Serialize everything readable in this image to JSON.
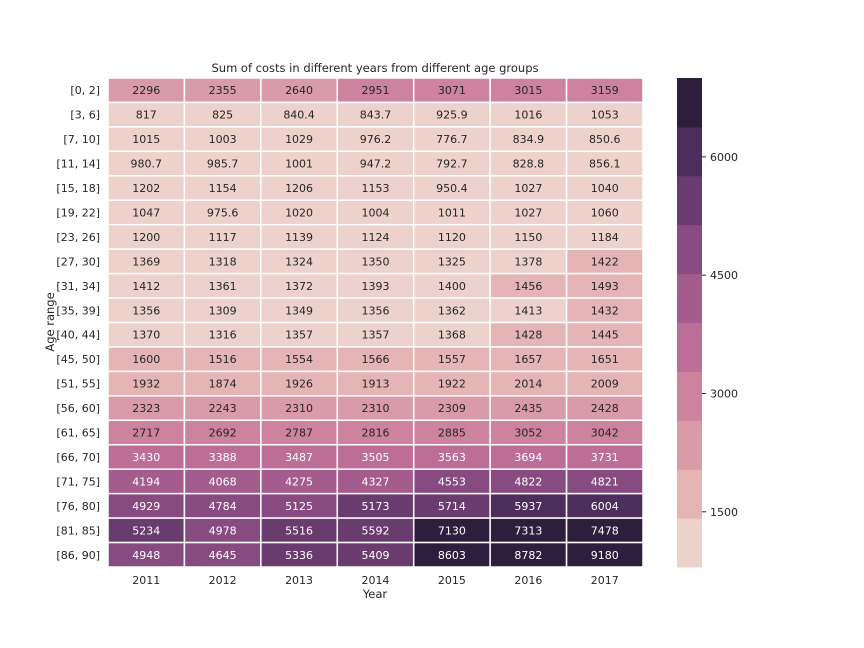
{
  "chart_data": {
    "type": "heatmap",
    "title": "Sum of costs in different years from different age groups",
    "xlabel": "Year",
    "ylabel": "Age range",
    "x": [
      "2011",
      "2012",
      "2013",
      "2014",
      "2015",
      "2016",
      "2017"
    ],
    "y": [
      "[0, 2]",
      "[3, 6]",
      "[7, 10]",
      "[11, 14]",
      "[15, 18]",
      "[19, 22]",
      "[23, 26]",
      "[27, 30]",
      "[31, 34]",
      "[35, 39]",
      "[40, 44]",
      "[45, 50]",
      "[51, 55]",
      "[56, 60]",
      "[61, 65]",
      "[66, 70]",
      "[71, 75]",
      "[76, 80]",
      "[81, 85]",
      "[86, 90]"
    ],
    "values": [
      [
        2296,
        2355,
        2640,
        2951,
        3071,
        3015,
        3159
      ],
      [
        817,
        825,
        840.4,
        843.7,
        925.9,
        1016,
        1053
      ],
      [
        1015,
        1003,
        1029,
        976.2,
        776.7,
        834.9,
        850.6
      ],
      [
        980.7,
        985.7,
        1001,
        947.2,
        792.7,
        828.8,
        856.1
      ],
      [
        1202,
        1154,
        1206,
        1153,
        950.4,
        1027,
        1040
      ],
      [
        1047,
        975.6,
        1020,
        1004,
        1011,
        1027,
        1060
      ],
      [
        1200,
        1117,
        1139,
        1124,
        1120,
        1150,
        1184
      ],
      [
        1369,
        1318,
        1324,
        1350,
        1325,
        1378,
        1422
      ],
      [
        1412,
        1361,
        1372,
        1393,
        1400,
        1456,
        1493
      ],
      [
        1356,
        1309,
        1349,
        1356,
        1362,
        1413,
        1432
      ],
      [
        1370,
        1316,
        1357,
        1357,
        1368,
        1428,
        1445
      ],
      [
        1600,
        1516,
        1554,
        1566,
        1557,
        1657,
        1651
      ],
      [
        1932,
        1874,
        1926,
        1913,
        1922,
        2014,
        2009
      ],
      [
        2323,
        2243,
        2310,
        2310,
        2309,
        2435,
        2428
      ],
      [
        2717,
        2692,
        2787,
        2816,
        2885,
        3052,
        3042
      ],
      [
        3430,
        3388,
        3487,
        3505,
        3563,
        3694,
        3731
      ],
      [
        4194,
        4068,
        4275,
        4327,
        4553,
        4822,
        4821
      ],
      [
        4929,
        4784,
        5125,
        5173,
        5714,
        5937,
        6004
      ],
      [
        5234,
        4978,
        5516,
        5592,
        7130,
        7313,
        7478
      ],
      [
        4948,
        4645,
        5336,
        5409,
        8603,
        8782,
        9180
      ]
    ],
    "colorbar": {
      "ticks": [
        "1500",
        "3000",
        "4500",
        "6000"
      ],
      "tick_values": [
        1500,
        3000,
        4500,
        6000
      ],
      "range": [
        800,
        7000
      ],
      "bins": 10,
      "colors": [
        "#edd1cb",
        "#e4b5b4",
        "#d99ba7",
        "#cd839e",
        "#bc6e97",
        "#a45b8e",
        "#874b81",
        "#6a3b6f",
        "#4d2d5b",
        "#2d1e3e"
      ]
    }
  }
}
